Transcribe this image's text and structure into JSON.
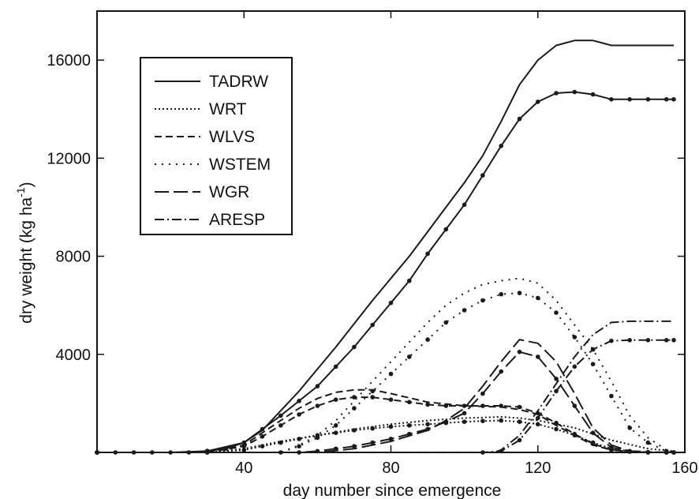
{
  "chart_data": {
    "type": "line",
    "title": "",
    "xlabel": "day number since emergence",
    "ylabel": "dry weight (kg ha",
    "ylabel_sup": "-1",
    "ylabel_close": ")",
    "xlim": [
      0,
      160
    ],
    "ylim": [
      0,
      18000
    ],
    "xticks": [
      40,
      80,
      120,
      160
    ],
    "yticks": [
      4000,
      8000,
      12000,
      16000
    ],
    "grid": false,
    "legend_position": "top-left",
    "legend": [
      {
        "name": "TADRW",
        "dash": "solid"
      },
      {
        "name": "WRT",
        "dash": "dotted-fine"
      },
      {
        "name": "WLVS",
        "dash": "dashed-short"
      },
      {
        "name": "WSTEM",
        "dash": "dotted-wide"
      },
      {
        "name": "WGR",
        "dash": "dashed-long"
      },
      {
        "name": "ARESP",
        "dash": "dash-dot"
      }
    ],
    "series": [
      {
        "name": "TADRW",
        "dash": "solid",
        "markers": false,
        "x": [
          0,
          20,
          30,
          40,
          45,
          50,
          55,
          60,
          65,
          70,
          75,
          80,
          85,
          90,
          95,
          100,
          105,
          110,
          115,
          120,
          125,
          130,
          135,
          140,
          145,
          150,
          157
        ],
        "y": [
          0,
          0,
          50,
          400,
          900,
          1700,
          2500,
          3400,
          4300,
          5250,
          6200,
          7100,
          8000,
          9000,
          10000,
          11000,
          12100,
          13500,
          15000,
          16000,
          16600,
          16800,
          16800,
          16600,
          16600,
          16600,
          16600
        ]
      },
      {
        "name": "TADRW",
        "dash": "solid",
        "markers": true,
        "x": [
          0,
          5,
          10,
          15,
          20,
          25,
          30,
          35,
          40,
          45,
          50,
          55,
          60,
          65,
          70,
          75,
          80,
          85,
          90,
          95,
          100,
          105,
          110,
          115,
          120,
          125,
          130,
          135,
          140,
          145,
          150,
          155,
          157
        ],
        "y": [
          0,
          0,
          0,
          0,
          0,
          0,
          60,
          150,
          400,
          950,
          1500,
          2100,
          2700,
          3500,
          4300,
          5200,
          6100,
          7000,
          8100,
          9100,
          10100,
          11300,
          12500,
          13600,
          14300,
          14650,
          14700,
          14600,
          14400,
          14400,
          14400,
          14400,
          14400
        ]
      },
      {
        "name": "WRT",
        "dash": "dotted-fine",
        "markers": false,
        "x": [
          0,
          30,
          40,
          50,
          60,
          70,
          80,
          90,
          100,
          110,
          115,
          120,
          130,
          140,
          150,
          157
        ],
        "y": [
          0,
          0,
          150,
          450,
          700,
          950,
          1150,
          1300,
          1400,
          1450,
          1400,
          1300,
          1000,
          500,
          150,
          50
        ]
      },
      {
        "name": "WRT",
        "dash": "dotted-fine",
        "markers": true,
        "x": [
          0,
          30,
          40,
          45,
          50,
          55,
          60,
          65,
          70,
          75,
          80,
          85,
          90,
          95,
          100,
          105,
          110,
          115,
          120,
          125,
          130,
          135,
          140,
          145,
          150,
          155,
          157
        ],
        "y": [
          0,
          0,
          100,
          250,
          400,
          550,
          700,
          800,
          900,
          980,
          1050,
          1100,
          1150,
          1200,
          1250,
          1280,
          1300,
          1250,
          1150,
          950,
          700,
          400,
          150,
          50,
          10,
          0,
          0
        ]
      },
      {
        "name": "WLVS",
        "dash": "dashed-short",
        "markers": false,
        "x": [
          0,
          30,
          40,
          45,
          50,
          55,
          60,
          65,
          70,
          75,
          80,
          90,
          100,
          110,
          115,
          120,
          125,
          130,
          135,
          140,
          150,
          157
        ],
        "y": [
          0,
          0,
          300,
          800,
          1300,
          1800,
          2200,
          2450,
          2550,
          2550,
          2400,
          2050,
          1900,
          1850,
          1750,
          1550,
          1100,
          700,
          300,
          100,
          20,
          0
        ]
      },
      {
        "name": "WLVS",
        "dash": "dashed-short",
        "markers": true,
        "x": [
          0,
          30,
          40,
          45,
          50,
          55,
          60,
          65,
          70,
          75,
          80,
          85,
          90,
          95,
          100,
          105,
          110,
          115,
          120,
          125,
          130,
          135,
          140,
          145,
          150,
          155,
          157
        ],
        "y": [
          0,
          0,
          250,
          650,
          1100,
          1550,
          1900,
          2150,
          2250,
          2250,
          2150,
          2050,
          1950,
          1900,
          1900,
          1900,
          1900,
          1850,
          1600,
          1200,
          750,
          350,
          100,
          30,
          0,
          0,
          0
        ]
      },
      {
        "name": "WSTEM",
        "dash": "dotted-wide",
        "markers": false,
        "x": [
          0,
          50,
          55,
          60,
          65,
          70,
          75,
          80,
          85,
          90,
          95,
          100,
          105,
          110,
          115,
          120,
          125,
          130,
          135,
          140,
          145,
          150,
          155,
          157
        ],
        "y": [
          0,
          0,
          300,
          700,
          1300,
          2100,
          2900,
          3700,
          4500,
          5300,
          6000,
          6500,
          6850,
          7000,
          7100,
          6900,
          6200,
          5200,
          4200,
          2900,
          1500,
          600,
          100,
          0
        ]
      },
      {
        "name": "WSTEM",
        "dash": "dotted-wide",
        "markers": true,
        "x": [
          0,
          50,
          55,
          60,
          65,
          70,
          75,
          80,
          85,
          90,
          95,
          100,
          105,
          110,
          115,
          120,
          125,
          130,
          135,
          140,
          145,
          150,
          155,
          157
        ],
        "y": [
          0,
          0,
          250,
          600,
          1100,
          1800,
          2500,
          3200,
          3900,
          4600,
          5300,
          5800,
          6200,
          6450,
          6500,
          6300,
          5700,
          4700,
          3600,
          2300,
          1000,
          400,
          50,
          0
        ]
      },
      {
        "name": "WGR",
        "dash": "dashed-long",
        "markers": false,
        "x": [
          0,
          60,
          70,
          80,
          90,
          95,
          100,
          105,
          110,
          115,
          120,
          125,
          130,
          135,
          140,
          145,
          150,
          157
        ],
        "y": [
          0,
          0,
          150,
          450,
          900,
          1300,
          1800,
          2700,
          3700,
          4600,
          4450,
          3700,
          2400,
          1000,
          300,
          50,
          0,
          0
        ]
      },
      {
        "name": "WGR",
        "dash": "dashed-long",
        "markers": true,
        "x": [
          0,
          55,
          60,
          65,
          70,
          75,
          80,
          85,
          90,
          95,
          100,
          105,
          110,
          115,
          120,
          125,
          130,
          135,
          140,
          145,
          150,
          155,
          157
        ],
        "y": [
          0,
          0,
          50,
          150,
          250,
          400,
          550,
          750,
          950,
          1250,
          1600,
          2400,
          3300,
          4100,
          3900,
          3000,
          1900,
          800,
          200,
          50,
          0,
          0,
          0
        ]
      },
      {
        "name": "ARESP",
        "dash": "dash-dot",
        "markers": false,
        "x": [
          0,
          108,
          110,
          115,
          120,
          125,
          130,
          135,
          140,
          145,
          150,
          157
        ],
        "y": [
          0,
          0,
          100,
          700,
          1700,
          2800,
          3900,
          4800,
          5300,
          5350,
          5350,
          5350
        ]
      },
      {
        "name": "ARESP",
        "dash": "dash-dot",
        "markers": true,
        "x": [
          0,
          105,
          110,
          115,
          120,
          125,
          130,
          135,
          140,
          145,
          150,
          155,
          157
        ],
        "y": [
          0,
          0,
          50,
          500,
          1400,
          2500,
          3500,
          4200,
          4550,
          4580,
          4580,
          4580,
          4580
        ]
      }
    ]
  }
}
